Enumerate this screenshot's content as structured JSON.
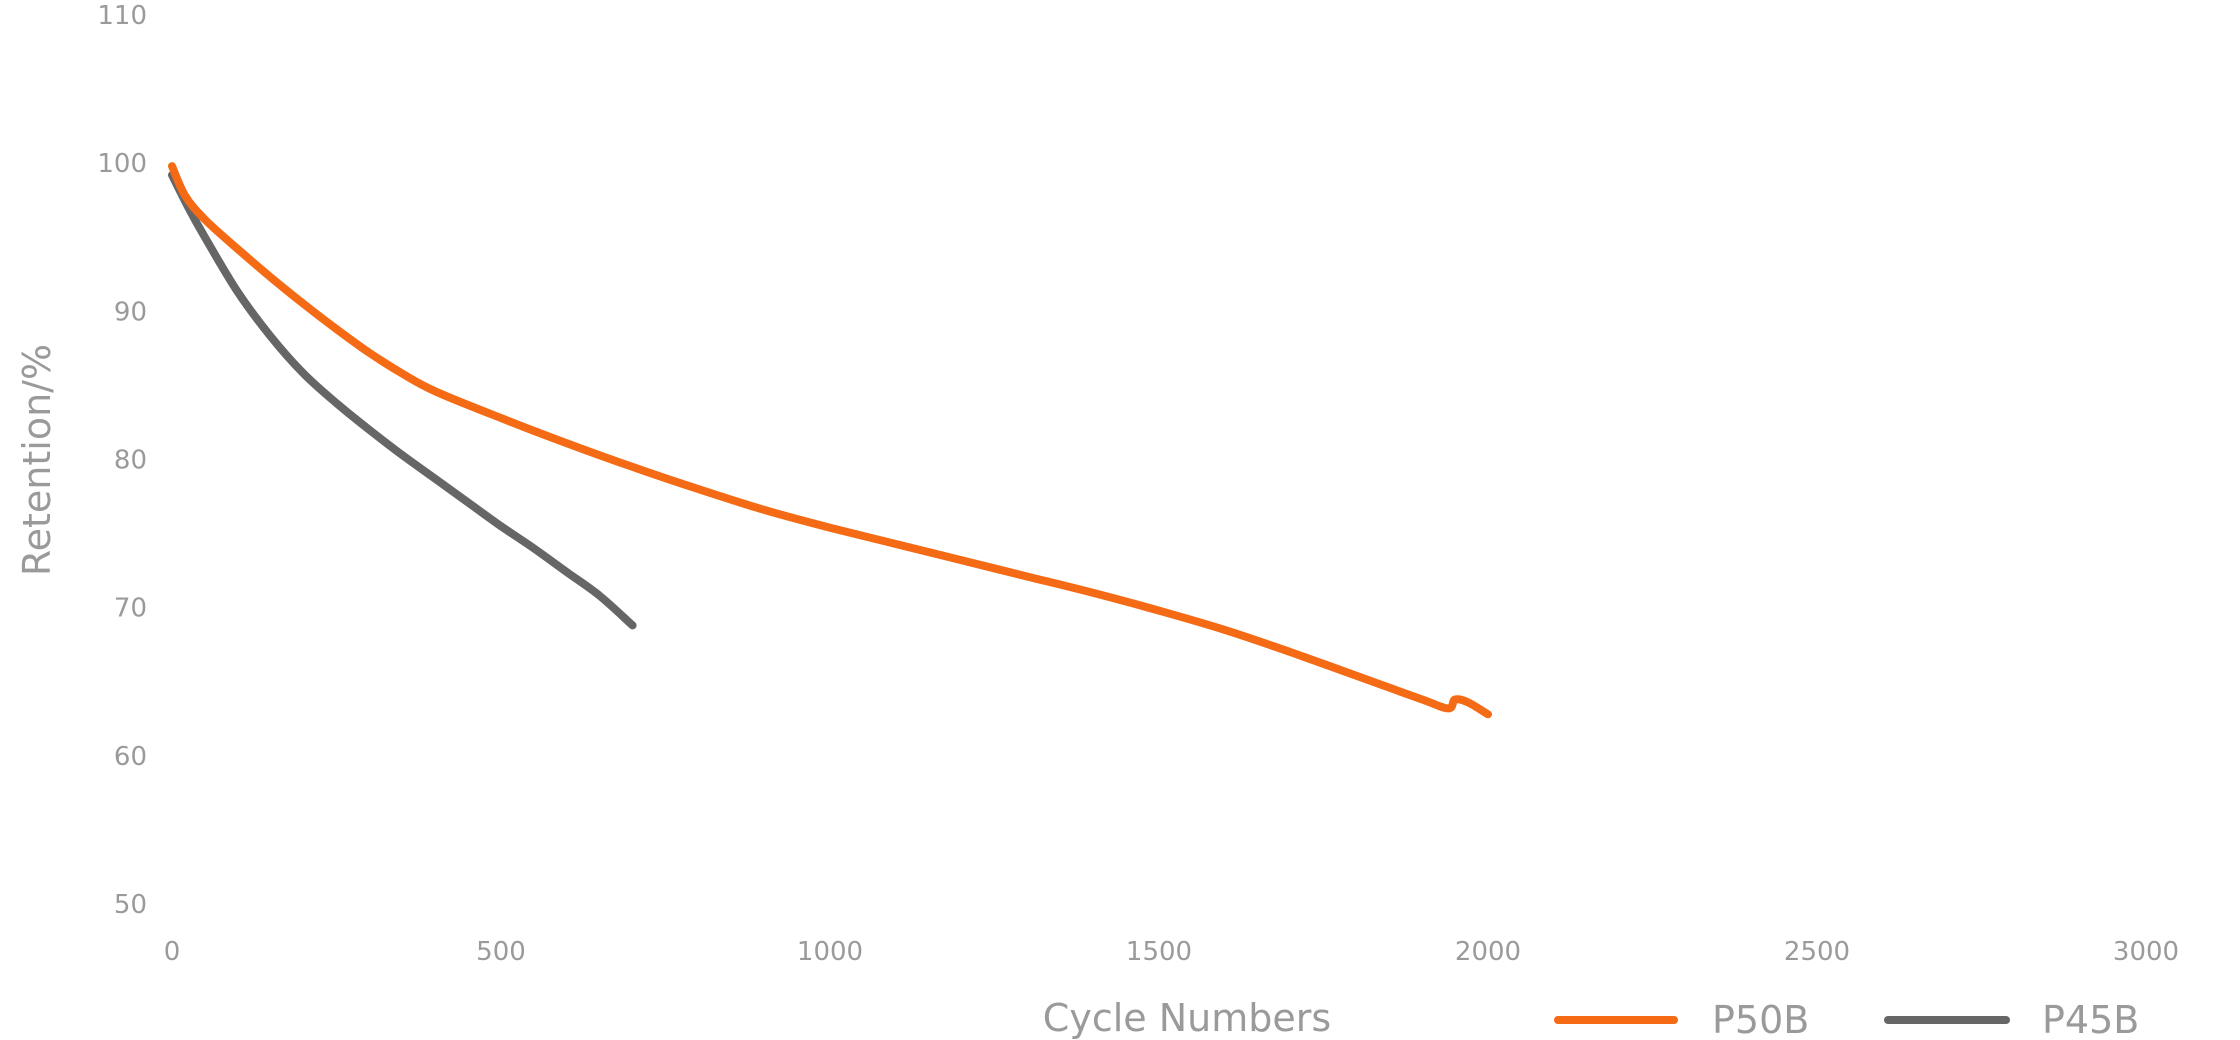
{
  "chart_data": {
    "type": "line",
    "xlabel": "Cycle Numbers",
    "ylabel": "Retention/%",
    "xlim": [
      0,
      3000
    ],
    "ylim": [
      50,
      110
    ],
    "x_ticks": [
      "0",
      "500",
      "1000",
      "1500",
      "2000",
      "2500",
      "3000"
    ],
    "y_ticks": [
      "50",
      "60",
      "70",
      "80",
      "90",
      "100",
      "110"
    ],
    "grid": false,
    "legend_position": "bottom-right",
    "series": [
      {
        "name": "P50B",
        "color": "#f56a14",
        "x": [
          0,
          20,
          50,
          100,
          150,
          200,
          250,
          300,
          350,
          400,
          500,
          600,
          700,
          800,
          900,
          1000,
          1100,
          1200,
          1300,
          1400,
          1500,
          1600,
          1700,
          1800,
          1900,
          1940,
          1950,
          1970,
          2000
        ],
        "y": [
          99.8,
          97.8,
          96.2,
          94.2,
          92.3,
          90.5,
          88.8,
          87.2,
          85.8,
          84.6,
          82.8,
          81.1,
          79.5,
          78.0,
          76.6,
          75.4,
          74.3,
          73.2,
          72.1,
          71.0,
          69.8,
          68.5,
          67.0,
          65.4,
          63.8,
          63.2,
          63.8,
          63.6,
          62.8
        ]
      },
      {
        "name": "P45B",
        "color": "#666666",
        "x": [
          0,
          25,
          50,
          100,
          150,
          200,
          250,
          300,
          350,
          400,
          450,
          500,
          550,
          600,
          650,
          700
        ],
        "y": [
          99.2,
          97.0,
          95.0,
          91.3,
          88.3,
          85.8,
          83.8,
          82.0,
          80.3,
          78.7,
          77.1,
          75.5,
          74.0,
          72.4,
          70.8,
          68.8
        ]
      }
    ]
  }
}
